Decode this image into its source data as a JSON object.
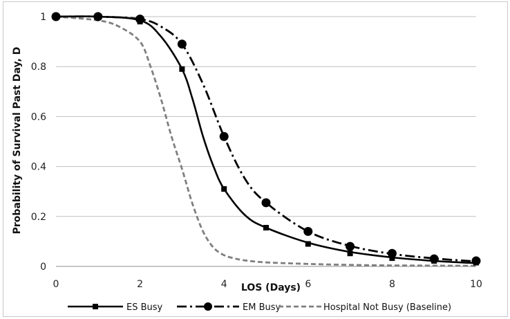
{
  "chart_data": {
    "type": "line",
    "title": "",
    "xlabel": "LOS (Days)",
    "ylabel": "Probability  of Survival Past Day, D",
    "xlim": [
      0,
      10
    ],
    "ylim": [
      0,
      1
    ],
    "x_ticks": [
      "0",
      "2",
      "4",
      "6",
      "8",
      "10"
    ],
    "y_ticks": [
      "0",
      "0.2",
      "0.4",
      "0.6",
      "0.8",
      "1"
    ],
    "grid": "horizontal",
    "legend_position": "bottom",
    "series": [
      {
        "name": "ES Busy",
        "color": "#000000",
        "line_style": "solid",
        "marker": "square",
        "marker_x": [
          0,
          1,
          2,
          3,
          4,
          5,
          6,
          7,
          8,
          9,
          10
        ],
        "marker_y": [
          1.0,
          1.0,
          0.98,
          0.79,
          0.31,
          0.155,
          0.09,
          0.052,
          0.033,
          0.022,
          0.015
        ],
        "curve_x": [
          0,
          1,
          2,
          2.5,
          3,
          3.25,
          3.5,
          3.75,
          4,
          4.5,
          5,
          6,
          7,
          8,
          9,
          10
        ],
        "curve_y": [
          1.0,
          1.0,
          0.985,
          0.92,
          0.79,
          0.67,
          0.52,
          0.4,
          0.31,
          0.205,
          0.155,
          0.095,
          0.058,
          0.036,
          0.022,
          0.013
        ]
      },
      {
        "name": "EM Busy",
        "color": "#000000",
        "line_style": "dash-dot",
        "marker": "circle",
        "marker_x": [
          0,
          1,
          2,
          3,
          4,
          5,
          6,
          7,
          8,
          9,
          10
        ],
        "marker_y": [
          1.0,
          1.0,
          0.99,
          0.89,
          0.52,
          0.255,
          0.14,
          0.08,
          0.052,
          0.03,
          0.022
        ],
        "curve_x": [
          0,
          1,
          2,
          2.5,
          3,
          3.5,
          4,
          4.5,
          5,
          6,
          7,
          8,
          9,
          10
        ],
        "curve_y": [
          1.0,
          1.0,
          0.99,
          0.96,
          0.89,
          0.73,
          0.52,
          0.35,
          0.255,
          0.14,
          0.082,
          0.05,
          0.032,
          0.02
        ]
      },
      {
        "name": "Hospital Not Busy (Baseline)",
        "color": "#7f7f7f",
        "line_style": "dashed",
        "marker": "none",
        "curve_x": [
          0,
          1,
          1.5,
          2,
          2.25,
          2.5,
          2.75,
          3,
          3.25,
          3.5,
          3.75,
          4,
          4.25,
          4.5,
          5,
          6,
          7,
          8,
          9,
          10
        ],
        "curve_y": [
          1.0,
          0.985,
          0.96,
          0.9,
          0.8,
          0.67,
          0.52,
          0.39,
          0.25,
          0.14,
          0.075,
          0.045,
          0.032,
          0.024,
          0.016,
          0.01,
          0.006,
          0.004,
          0.003,
          0.002
        ]
      }
    ]
  }
}
